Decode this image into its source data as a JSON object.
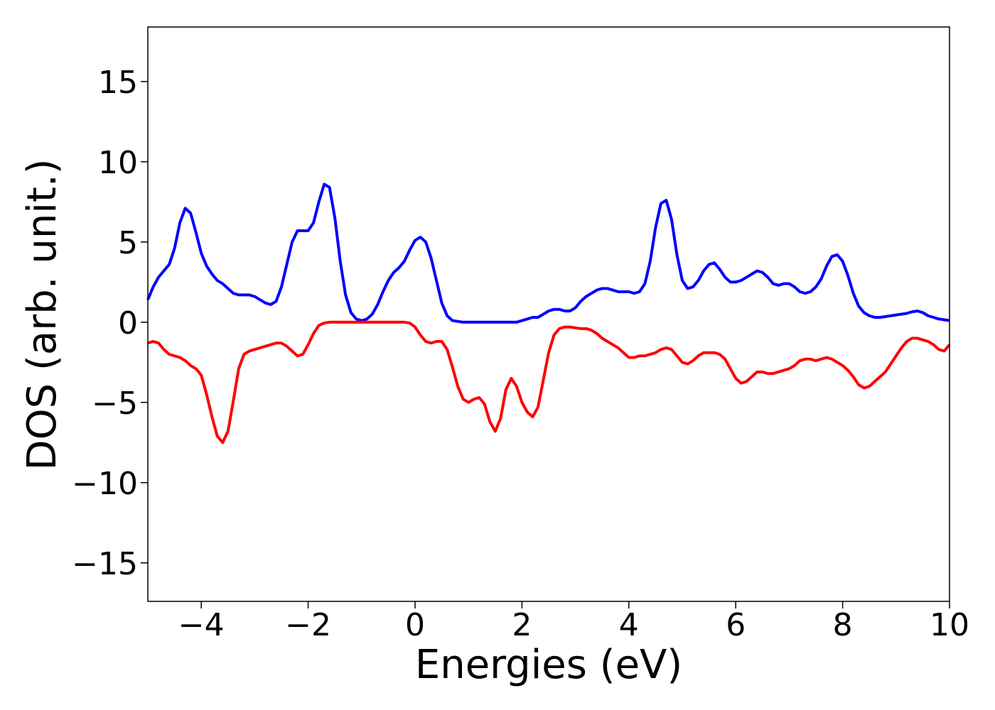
{
  "chart_data": {
    "type": "line",
    "xlabel": "Energies (eV)",
    "ylabel": "DOS (arb. unit.)",
    "x": [
      -5,
      -4.9,
      -4.8,
      -4.7,
      -4.6,
      -4.5,
      -4.4,
      -4.3,
      -4.2,
      -4.1,
      -4,
      -3.9,
      -3.8,
      -3.7,
      -3.6,
      -3.5,
      -3.4,
      -3.3,
      -3.2,
      -3.1,
      -3,
      -2.9,
      -2.8,
      -2.7,
      -2.6,
      -2.5,
      -2.4,
      -2.3,
      -2.2,
      -2.1,
      -2,
      -1.9,
      -1.8,
      -1.7,
      -1.6,
      -1.5,
      -1.4,
      -1.3,
      -1.2,
      -1.1,
      -1,
      -0.9,
      -0.8,
      -0.7,
      -0.6,
      -0.5,
      -0.4,
      -0.3,
      -0.2,
      -0.1,
      0,
      0.1,
      0.2,
      0.3,
      0.4,
      0.5,
      0.6,
      0.7,
      0.8,
      0.9,
      1,
      1.1,
      1.2,
      1.3,
      1.4,
      1.5,
      1.6,
      1.7,
      1.8,
      1.9,
      2,
      2.1,
      2.2,
      2.3,
      2.4,
      2.5,
      2.6,
      2.7,
      2.8,
      2.9,
      3,
      3.1,
      3.2,
      3.3,
      3.4,
      3.5,
      3.6,
      3.7,
      3.8,
      3.9,
      4,
      4.1,
      4.2,
      4.3,
      4.4,
      4.5,
      4.6,
      4.7,
      4.8,
      4.9,
      5,
      5.1,
      5.2,
      5.3,
      5.4,
      5.5,
      5.6,
      5.7,
      5.8,
      5.9,
      6,
      6.1,
      6.2,
      6.3,
      6.4,
      6.5,
      6.6,
      6.7,
      6.8,
      6.9,
      7,
      7.1,
      7.2,
      7.3,
      7.4,
      7.5,
      7.6,
      7.7,
      7.8,
      7.9,
      8,
      8.1,
      8.2,
      8.3,
      8.4,
      8.5,
      8.6,
      8.7,
      8.8,
      8.9,
      9,
      9.1,
      9.2,
      9.3,
      9.4,
      9.5,
      9.6,
      9.7,
      9.8,
      9.9,
      10
    ],
    "series": [
      {
        "color": "#0000ff",
        "values": [
          1.4,
          2.2,
          2.8,
          3.2,
          3.6,
          4.6,
          6.2,
          7.1,
          6.8,
          5.6,
          4.3,
          3.5,
          3.0,
          2.6,
          2.4,
          2.1,
          1.8,
          1.7,
          1.7,
          1.7,
          1.6,
          1.4,
          1.2,
          1.1,
          1.3,
          2.2,
          3.6,
          5.0,
          5.7,
          5.7,
          5.7,
          6.2,
          7.5,
          8.6,
          8.4,
          6.5,
          3.8,
          1.7,
          0.6,
          0.2,
          0.1,
          0.2,
          0.5,
          1.1,
          1.9,
          2.6,
          3.1,
          3.4,
          3.8,
          4.5,
          5.1,
          5.3,
          5.0,
          4.0,
          2.6,
          1.2,
          0.4,
          0.1,
          0.05,
          0,
          0,
          0,
          0,
          0,
          0,
          0,
          0,
          0,
          0,
          0,
          0.1,
          0.2,
          0.3,
          0.3,
          0.5,
          0.7,
          0.8,
          0.8,
          0.7,
          0.7,
          0.9,
          1.3,
          1.6,
          1.8,
          2.0,
          2.1,
          2.1,
          2.0,
          1.9,
          1.9,
          1.9,
          1.8,
          1.9,
          2.4,
          3.8,
          5.9,
          7.4,
          7.6,
          6.4,
          4.2,
          2.6,
          2.1,
          2.2,
          2.6,
          3.2,
          3.6,
          3.7,
          3.3,
          2.8,
          2.5,
          2.5,
          2.6,
          2.8,
          3.0,
          3.2,
          3.1,
          2.8,
          2.4,
          2.3,
          2.4,
          2.4,
          2.2,
          1.9,
          1.8,
          1.9,
          2.2,
          2.7,
          3.5,
          4.1,
          4.2,
          3.8,
          2.9,
          1.8,
          1.0,
          0.6,
          0.4,
          0.3,
          0.3,
          0.35,
          0.4,
          0.45,
          0.5,
          0.55,
          0.65,
          0.7,
          0.6,
          0.4,
          0.3,
          0.2,
          0.15,
          0.1
        ]
      },
      {
        "color": "#ff0000",
        "values": [
          -1.3,
          -1.2,
          -1.3,
          -1.7,
          -2.0,
          -2.1,
          -2.2,
          -2.4,
          -2.7,
          -2.9,
          -3.3,
          -4.5,
          -5.9,
          -7.1,
          -7.5,
          -6.8,
          -4.9,
          -2.9,
          -2.0,
          -1.8,
          -1.7,
          -1.6,
          -1.5,
          -1.4,
          -1.3,
          -1.3,
          -1.5,
          -1.8,
          -2.1,
          -2.0,
          -1.4,
          -0.7,
          -0.2,
          -0.05,
          0,
          0,
          0,
          0,
          0,
          0,
          0,
          0,
          0,
          0,
          0,
          0,
          0,
          0,
          0,
          -0.05,
          -0.3,
          -0.8,
          -1.2,
          -1.3,
          -1.2,
          -1.2,
          -1.7,
          -2.8,
          -4.0,
          -4.8,
          -5.0,
          -4.8,
          -4.7,
          -5.1,
          -6.2,
          -6.8,
          -6.0,
          -4.2,
          -3.5,
          -4.0,
          -5.0,
          -5.6,
          -5.9,
          -5.3,
          -3.6,
          -1.9,
          -0.8,
          -0.4,
          -0.3,
          -0.3,
          -0.35,
          -0.4,
          -0.4,
          -0.5,
          -0.7,
          -1.0,
          -1.2,
          -1.4,
          -1.6,
          -1.9,
          -2.2,
          -2.2,
          -2.1,
          -2.1,
          -2.0,
          -1.9,
          -1.7,
          -1.6,
          -1.7,
          -2.1,
          -2.5,
          -2.6,
          -2.4,
          -2.1,
          -1.9,
          -1.9,
          -1.9,
          -2.0,
          -2.3,
          -2.9,
          -3.5,
          -3.8,
          -3.7,
          -3.4,
          -3.1,
          -3.1,
          -3.2,
          -3.2,
          -3.1,
          -3.0,
          -2.9,
          -2.7,
          -2.4,
          -2.3,
          -2.3,
          -2.4,
          -2.3,
          -2.2,
          -2.3,
          -2.5,
          -2.7,
          -3.0,
          -3.4,
          -3.9,
          -4.1,
          -4.0,
          -3.7,
          -3.4,
          -3.1,
          -2.6,
          -2.1,
          -1.6,
          -1.2,
          -1.0,
          -1.0,
          -1.1,
          -1.2,
          -1.4,
          -1.7,
          -1.8,
          -1.4
        ]
      }
    ],
    "xlim": [
      -5,
      10
    ],
    "xticks": [
      {
        "value": -4,
        "label": "−4"
      },
      {
        "value": -2,
        "label": "−2"
      },
      0,
      2,
      4,
      6,
      8,
      10
    ],
    "ylim": [
      -17.4,
      18.4
    ],
    "yticks": [
      {
        "value": -15,
        "label": "−15"
      },
      {
        "value": -10,
        "label": "−10"
      },
      {
        "value": -5,
        "label": "−5"
      },
      0,
      5,
      10,
      15
    ]
  }
}
